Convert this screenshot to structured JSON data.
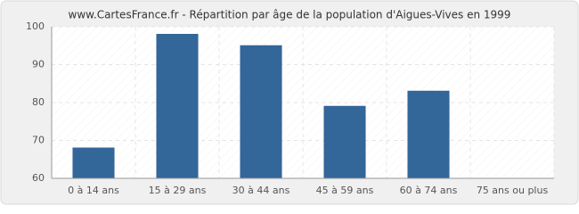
{
  "chart_data": {
    "type": "bar",
    "title": "www.CartesFrance.fr - Répartition par âge de la population d'Aigues-Vives en 1999",
    "categories": [
      "0 à 14 ans",
      "15 à 29 ans",
      "30 à 44 ans",
      "45 à 59 ans",
      "60 à 74 ans",
      "75 ans ou plus"
    ],
    "values": [
      68,
      98,
      95,
      79,
      83,
      60
    ],
    "color": "#336699",
    "ylim": [
      60,
      100
    ],
    "yticks": [
      60,
      70,
      80,
      90,
      100
    ],
    "grid": true
  }
}
